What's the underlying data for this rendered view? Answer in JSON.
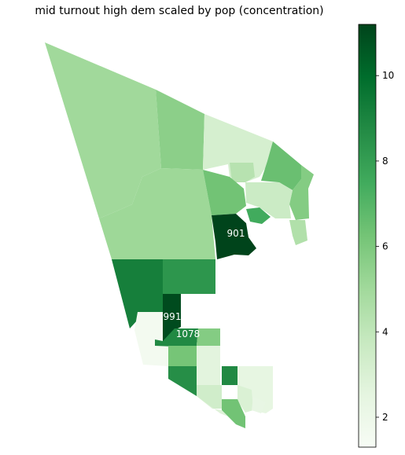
{
  "chart_data": {
    "type": "choropleth",
    "title": "mid turnout high dem scaled by pop (concentration)",
    "colormap": "Greens",
    "colorbar": {
      "min": 1.3,
      "max": 11.2,
      "ticks": [
        2,
        4,
        6,
        8,
        10
      ],
      "tick_labels": [
        "2",
        "4",
        "6",
        "8",
        "10"
      ]
    },
    "regions": [
      {
        "id": "r01",
        "value": 5.0
      },
      {
        "id": "r02",
        "value": 5.6
      },
      {
        "id": "r03",
        "value": 5.1
      },
      {
        "id": "r04",
        "value": 3.2
      },
      {
        "id": "r05",
        "value": 5.8
      },
      {
        "id": "r06",
        "value": 6.5
      },
      {
        "id": "r07",
        "value": 4.3
      },
      {
        "id": "r08",
        "value": 3.6
      },
      {
        "id": "r09",
        "value": 6.3
      },
      {
        "id": "r10",
        "value": 7.5
      },
      {
        "id": "r11",
        "value": 4.5
      },
      {
        "id": "r12",
        "value": 11.2
      },
      {
        "id": "r13",
        "value": 9.2
      },
      {
        "id": "r14",
        "value": 8.3
      },
      {
        "id": "r15",
        "value": 11.0
      },
      {
        "id": "r16",
        "value": 1.6
      },
      {
        "id": "r17",
        "value": 8.8
      },
      {
        "id": "r18",
        "value": 5.8
      },
      {
        "id": "r19",
        "value": 2.6
      },
      {
        "id": "r20",
        "value": 6.2
      },
      {
        "id": "r21",
        "value": 3.4
      },
      {
        "id": "r22",
        "value": 8.6
      },
      {
        "id": "r23",
        "value": 2.4
      },
      {
        "id": "r24",
        "value": 8.8
      },
      {
        "id": "r25",
        "value": 3.0
      },
      {
        "id": "r26",
        "value": 6.3
      },
      {
        "id": "r27",
        "value": 2.8
      },
      {
        "id": "r28",
        "value": 2.3
      }
    ],
    "labels": [
      {
        "text": "901"
      },
      {
        "text": "991"
      },
      {
        "text": "1078"
      }
    ]
  }
}
